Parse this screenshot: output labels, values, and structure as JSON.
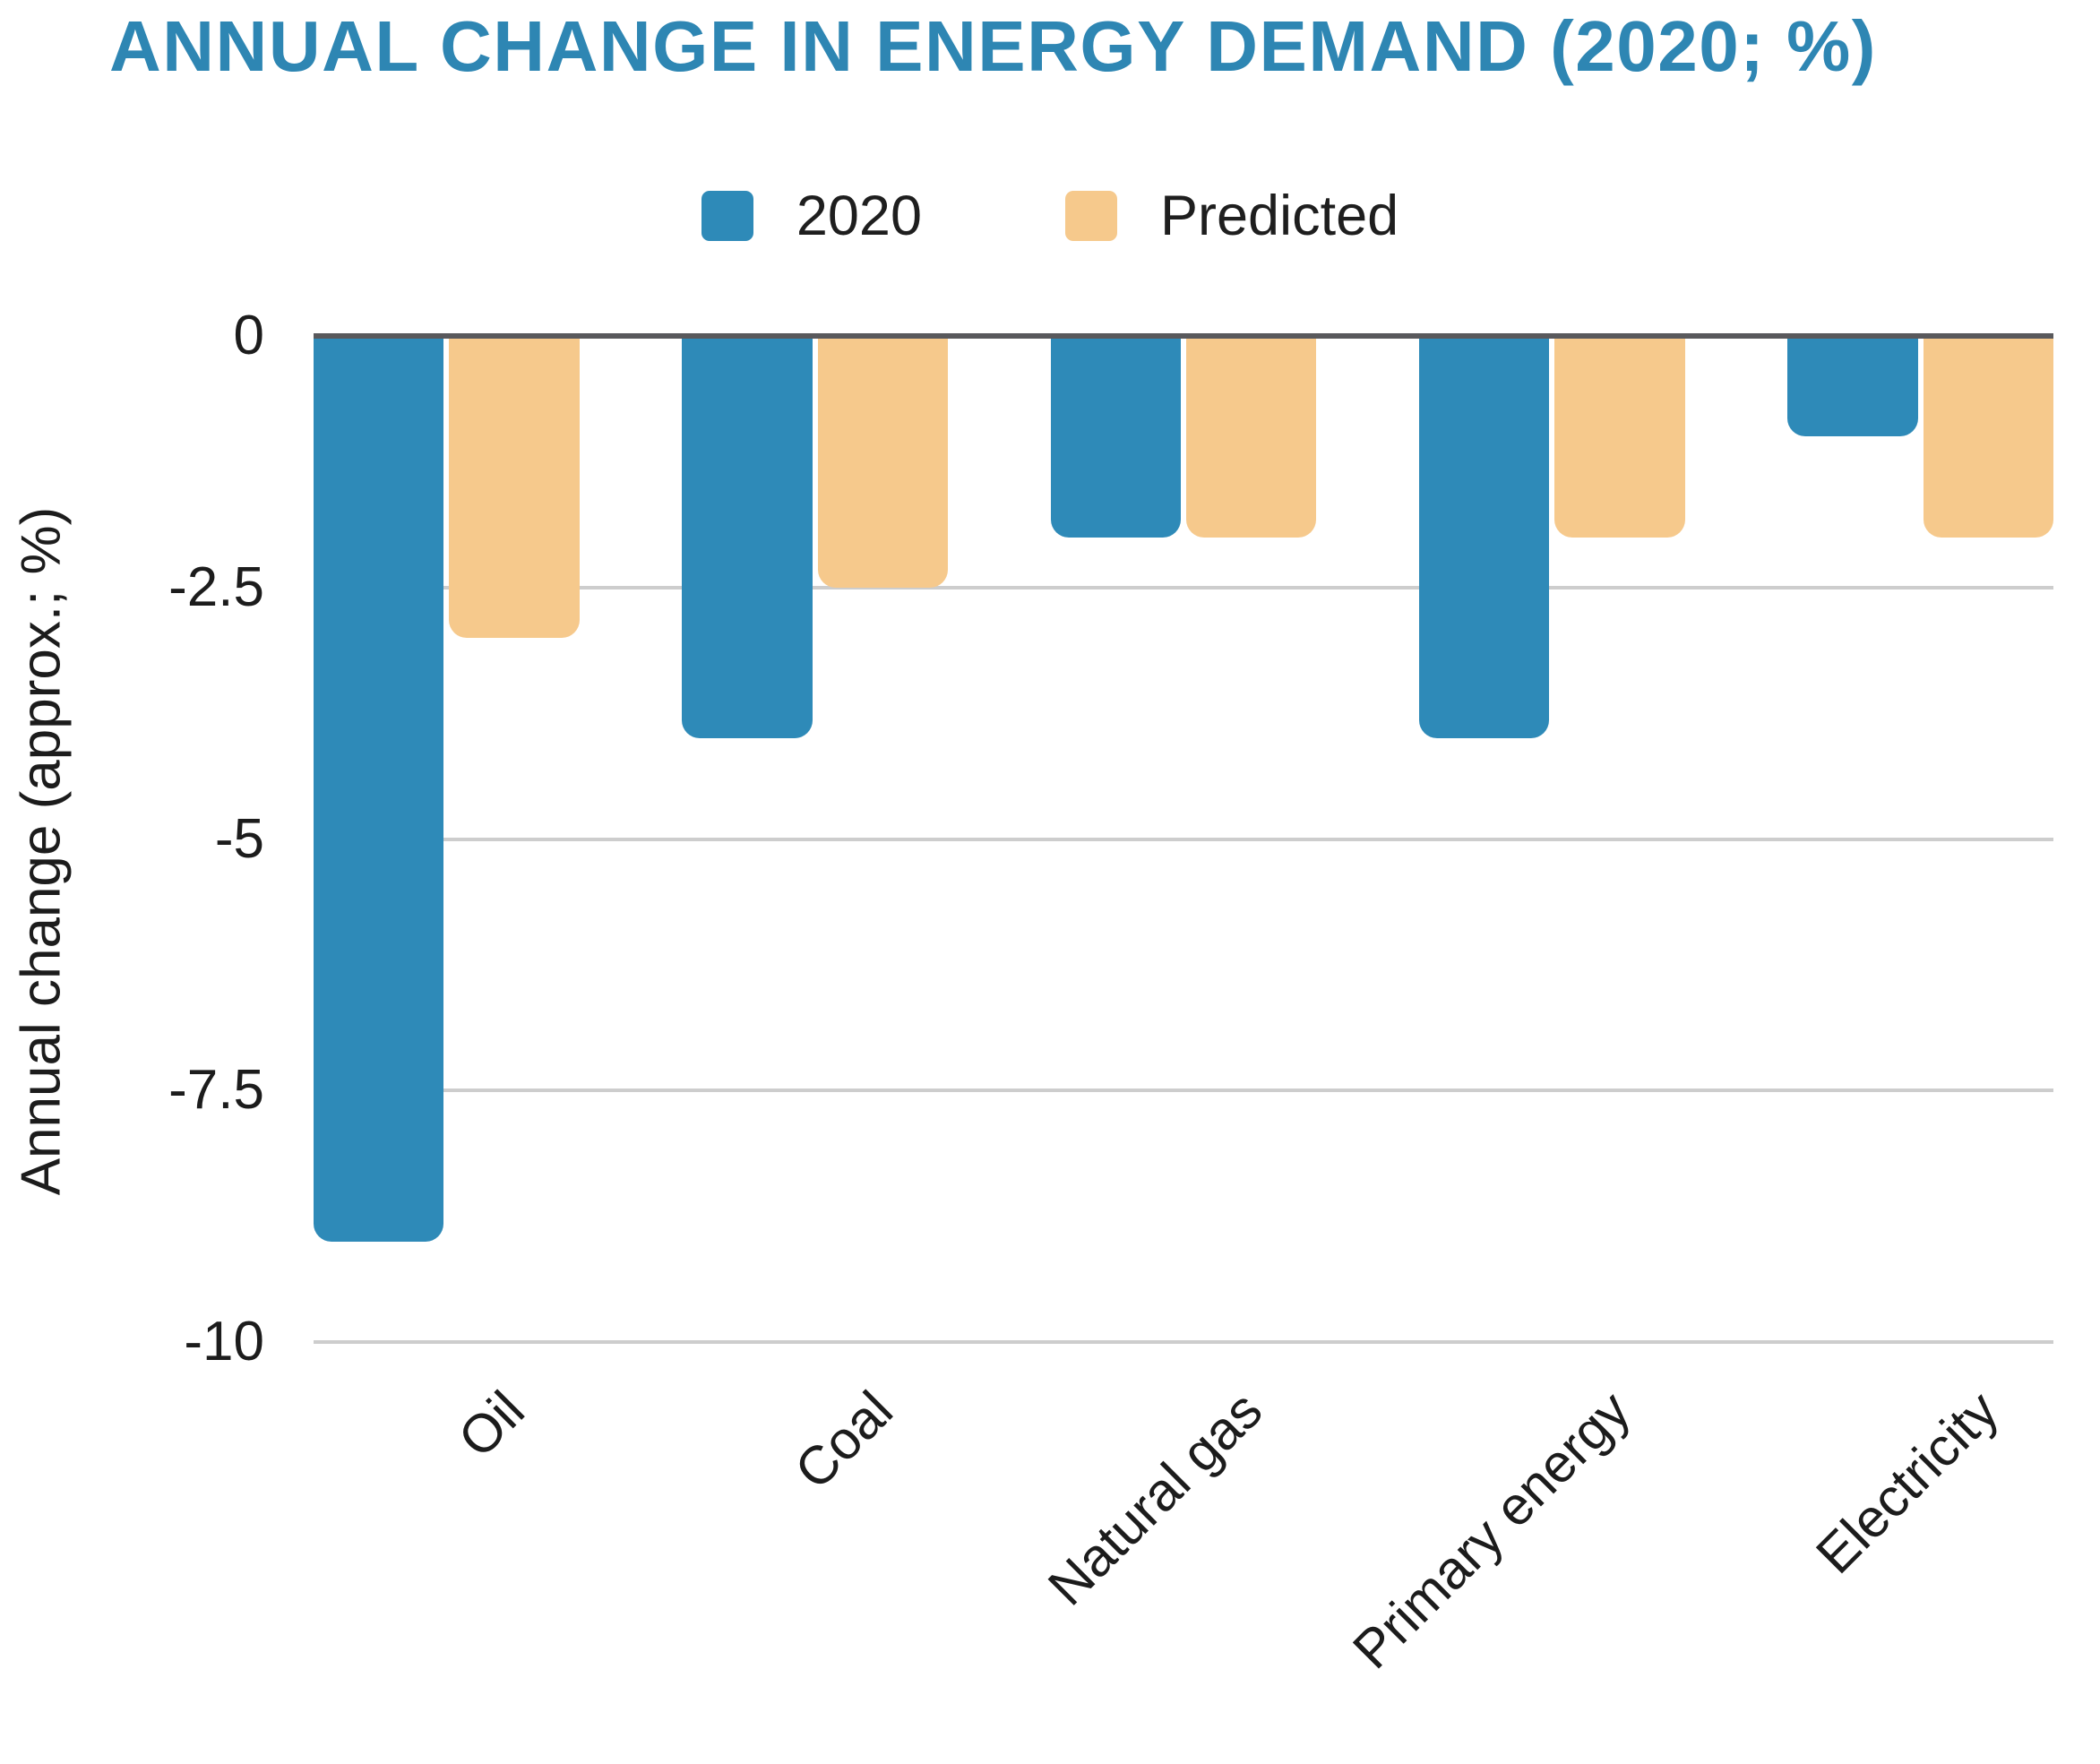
{
  "title": "ANNUAL CHANGE IN ENERGY DEMAND (2020; %)",
  "colors": {
    "title": "#2E86B3",
    "series_2020": "#2E8AB8",
    "series_predicted": "#F6C98C",
    "zero_line": "#59595C",
    "gridline": "#CDCDCD",
    "text": "#1C1C1C"
  },
  "legend": {
    "items": [
      {
        "label": "2020",
        "color": "#2E8AB8"
      },
      {
        "label": "Predicted",
        "color": "#F6C98C"
      }
    ]
  },
  "chart_data": {
    "type": "bar",
    "title": "ANNUAL CHANGE IN ENERGY DEMAND (2020; %)",
    "categories": [
      "Oil",
      "Coal",
      "Natural gas",
      "Primary energy",
      "Electricity"
    ],
    "series": [
      {
        "name": "2020",
        "color": "#2E8AB8",
        "values": [
          -9,
          -4,
          -2,
          -4,
          -1
        ]
      },
      {
        "name": "Predicted",
        "color": "#F6C98C",
        "values": [
          -3,
          -2.5,
          -2,
          -2,
          -2
        ]
      }
    ],
    "xlabel": "",
    "ylabel": "Annual change (approx.; %)",
    "yticks": [
      0,
      -2.5,
      -5,
      -7.5,
      -10
    ],
    "ylim": [
      -10,
      0
    ],
    "grid": true,
    "legend_position": "top",
    "x_tick_rotation_deg": 45
  }
}
